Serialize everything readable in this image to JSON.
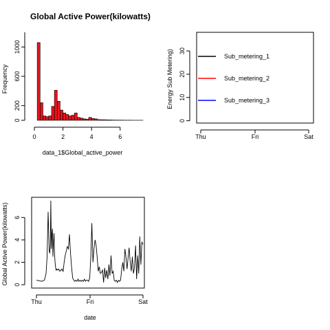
{
  "chart_data": [
    {
      "type": "bar",
      "title": "Global Active Power(kilowatts)",
      "xlabel": "data_1$Global_active_power",
      "ylabel": "Frequency",
      "xlim": [
        0,
        7.6
      ],
      "ylim": [
        0,
        1200
      ],
      "x_ticks": [
        "0",
        "2",
        "4",
        "6"
      ],
      "y_ticks": [
        "0",
        "200",
        "600",
        "1000"
      ],
      "bar_color": "#e8141e",
      "bin_width": 0.2,
      "bin_starts": [
        0.2,
        0.4,
        0.6,
        0.8,
        1.0,
        1.2,
        1.4,
        1.6,
        1.8,
        2.0,
        2.2,
        2.4,
        2.6,
        2.8,
        3.0,
        3.2,
        3.4,
        3.6,
        3.8,
        4.0,
        4.2,
        4.4,
        4.6,
        4.8,
        5.0,
        5.2,
        5.4,
        5.6,
        5.8,
        6.0,
        6.2,
        6.4,
        6.6,
        6.8,
        7.0,
        7.2,
        7.4
      ],
      "values": [
        1060,
        240,
        60,
        50,
        60,
        190,
        410,
        260,
        140,
        100,
        80,
        60,
        70,
        100,
        40,
        30,
        20,
        15,
        40,
        25,
        20,
        10,
        8,
        8,
        6,
        5,
        4,
        3,
        3,
        3,
        2,
        2,
        2,
        1,
        1,
        1,
        1
      ]
    },
    {
      "type": "line",
      "xlabel": "",
      "ylabel": "Energy Sub Metering)",
      "x_ticks": [
        "Thu",
        "Fri",
        "Sat"
      ],
      "y_ticks": [
        "0",
        "10",
        "20",
        "30"
      ],
      "ylim": [
        -1,
        38
      ],
      "legend_position": "top-left",
      "legend_border": true,
      "series": [
        {
          "name": "Sub_metering_1",
          "color": "#000000",
          "values": []
        },
        {
          "name": "Sub_metering_2",
          "color": "#ff0000",
          "values": []
        },
        {
          "name": "Sub_metering_3",
          "color": "#0000ff",
          "values": []
        }
      ]
    },
    {
      "type": "line",
      "xlabel": "date",
      "ylabel": "Global Active Power(kilowatts)",
      "x_ticks": [
        "Thu",
        "Fri",
        "Sat"
      ],
      "y_ticks": [
        "0",
        "2",
        "4",
        "6"
      ],
      "xlim": [
        0,
        2
      ],
      "ylim": [
        -0.3,
        7.8
      ],
      "series": [
        {
          "name": "",
          "color": "#000000",
          "x": [
            0.0,
            0.1,
            0.15,
            0.18,
            0.2,
            0.22,
            0.24,
            0.25,
            0.26,
            0.27,
            0.28,
            0.29,
            0.3,
            0.31,
            0.32,
            0.33,
            0.34,
            0.35,
            0.36,
            0.37,
            0.38,
            0.4,
            0.42,
            0.44,
            0.46,
            0.48,
            0.5,
            0.52,
            0.54,
            0.56,
            0.58,
            0.6,
            0.62,
            0.64,
            0.66,
            0.68,
            0.7,
            0.72,
            0.74,
            0.76,
            0.78,
            0.8,
            0.82,
            0.84,
            0.86,
            0.88,
            0.9,
            0.92,
            0.94,
            0.96,
            0.98,
            1.0,
            1.02,
            1.04,
            1.06,
            1.08,
            1.1,
            1.12,
            1.14,
            1.16,
            1.18,
            1.2,
            1.22,
            1.24,
            1.26,
            1.28,
            1.3,
            1.32,
            1.34,
            1.36,
            1.38,
            1.4,
            1.42,
            1.44,
            1.46,
            1.48,
            1.5,
            1.52,
            1.54,
            1.56,
            1.58,
            1.6,
            1.62,
            1.64,
            1.66,
            1.68,
            1.7,
            1.72,
            1.74,
            1.76,
            1.78,
            1.8,
            1.82,
            1.84,
            1.86,
            1.88,
            1.9,
            1.92,
            1.94,
            1.96,
            1.98,
            2.0
          ],
          "y": [
            0.4,
            0.3,
            0.4,
            1.0,
            2.5,
            6.5,
            3.0,
            2.8,
            3.5,
            7.5,
            3.2,
            4.5,
            5.0,
            2.5,
            3.8,
            4.6,
            2.8,
            2.0,
            1.5,
            1.3,
            1.4,
            1.3,
            1.4,
            1.2,
            1.3,
            1.4,
            1.2,
            2.0,
            2.6,
            3.0,
            3.4,
            3.2,
            4.5,
            2.8,
            1.5,
            0.6,
            0.4,
            0.3,
            0.4,
            0.3,
            0.5,
            0.3,
            0.4,
            0.3,
            0.4,
            0.3,
            0.5,
            0.3,
            0.4,
            0.4,
            0.3,
            0.6,
            2.5,
            5.5,
            2.0,
            3.2,
            4.0,
            3.5,
            2.5,
            1.2,
            1.6,
            1.0,
            1.1,
            1.3,
            0.2,
            1.5,
            0.6,
            1.3,
            0.5,
            1.8,
            0.8,
            2.6,
            1.0,
            1.2,
            0.4,
            0.3,
            0.4,
            0.2,
            0.4,
            0.3,
            0.4,
            1.4,
            2.0,
            1.2,
            3.2,
            2.5,
            1.4,
            2.4,
            3.3,
            2.0,
            1.2,
            2.5,
            1.0,
            1.5,
            3.5,
            0.5,
            2.6,
            1.0,
            4.3,
            1.8,
            3.8,
            3.6
          ]
        }
      ]
    }
  ]
}
